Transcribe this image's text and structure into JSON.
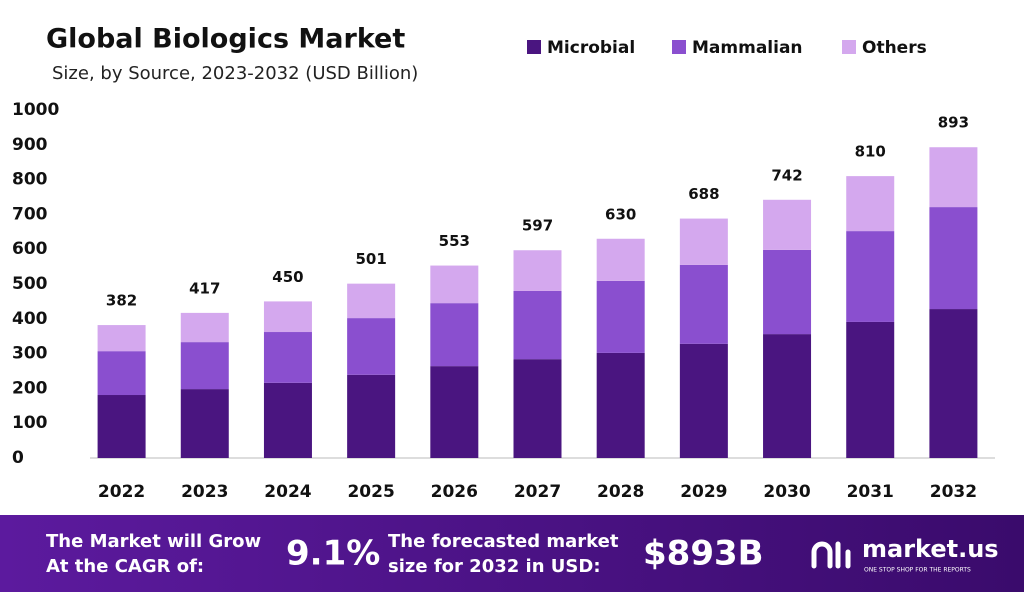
{
  "chart_data": {
    "type": "bar",
    "stacked": true,
    "title": "Global Biologics Market",
    "subtitle": "Size, by Source, 2023-2032 (USD Billion)",
    "categories": [
      "2022",
      "2023",
      "2024",
      "2025",
      "2026",
      "2027",
      "2028",
      "2029",
      "2030",
      "2031",
      "2032"
    ],
    "series": [
      {
        "name": "Microbial",
        "color": "#4a1580",
        "values": [
          181,
          198,
          216,
          239,
          264,
          284,
          302,
          328,
          356,
          391,
          428
        ]
      },
      {
        "name": "Mammalian",
        "color": "#8a4fcf",
        "values": [
          126,
          135,
          146,
          163,
          181,
          196,
          207,
          227,
          242,
          261,
          293
        ]
      },
      {
        "name": "Others",
        "color": "#d4a8ee",
        "values": [
          75,
          84,
          88,
          99,
          108,
          117,
          121,
          133,
          144,
          158,
          172
        ]
      }
    ],
    "totals": [
      382,
      417,
      450,
      501,
      553,
      597,
      630,
      688,
      742,
      810,
      893
    ],
    "ylim": [
      0,
      1000
    ],
    "yticks": [
      0,
      100,
      200,
      300,
      400,
      500,
      600,
      700,
      800,
      900,
      1000
    ],
    "grid": false
  },
  "footer": {
    "cagr_text": [
      "The Market will Grow",
      "At the CAGR of:"
    ],
    "cagr": "9.1%",
    "forecast_text": [
      "The forecasted market",
      "size for 2032 in USD:"
    ],
    "forecast": "$893B",
    "brand": "market.us",
    "tagline": "ONE STOP SHOP FOR THE REPORTS"
  }
}
